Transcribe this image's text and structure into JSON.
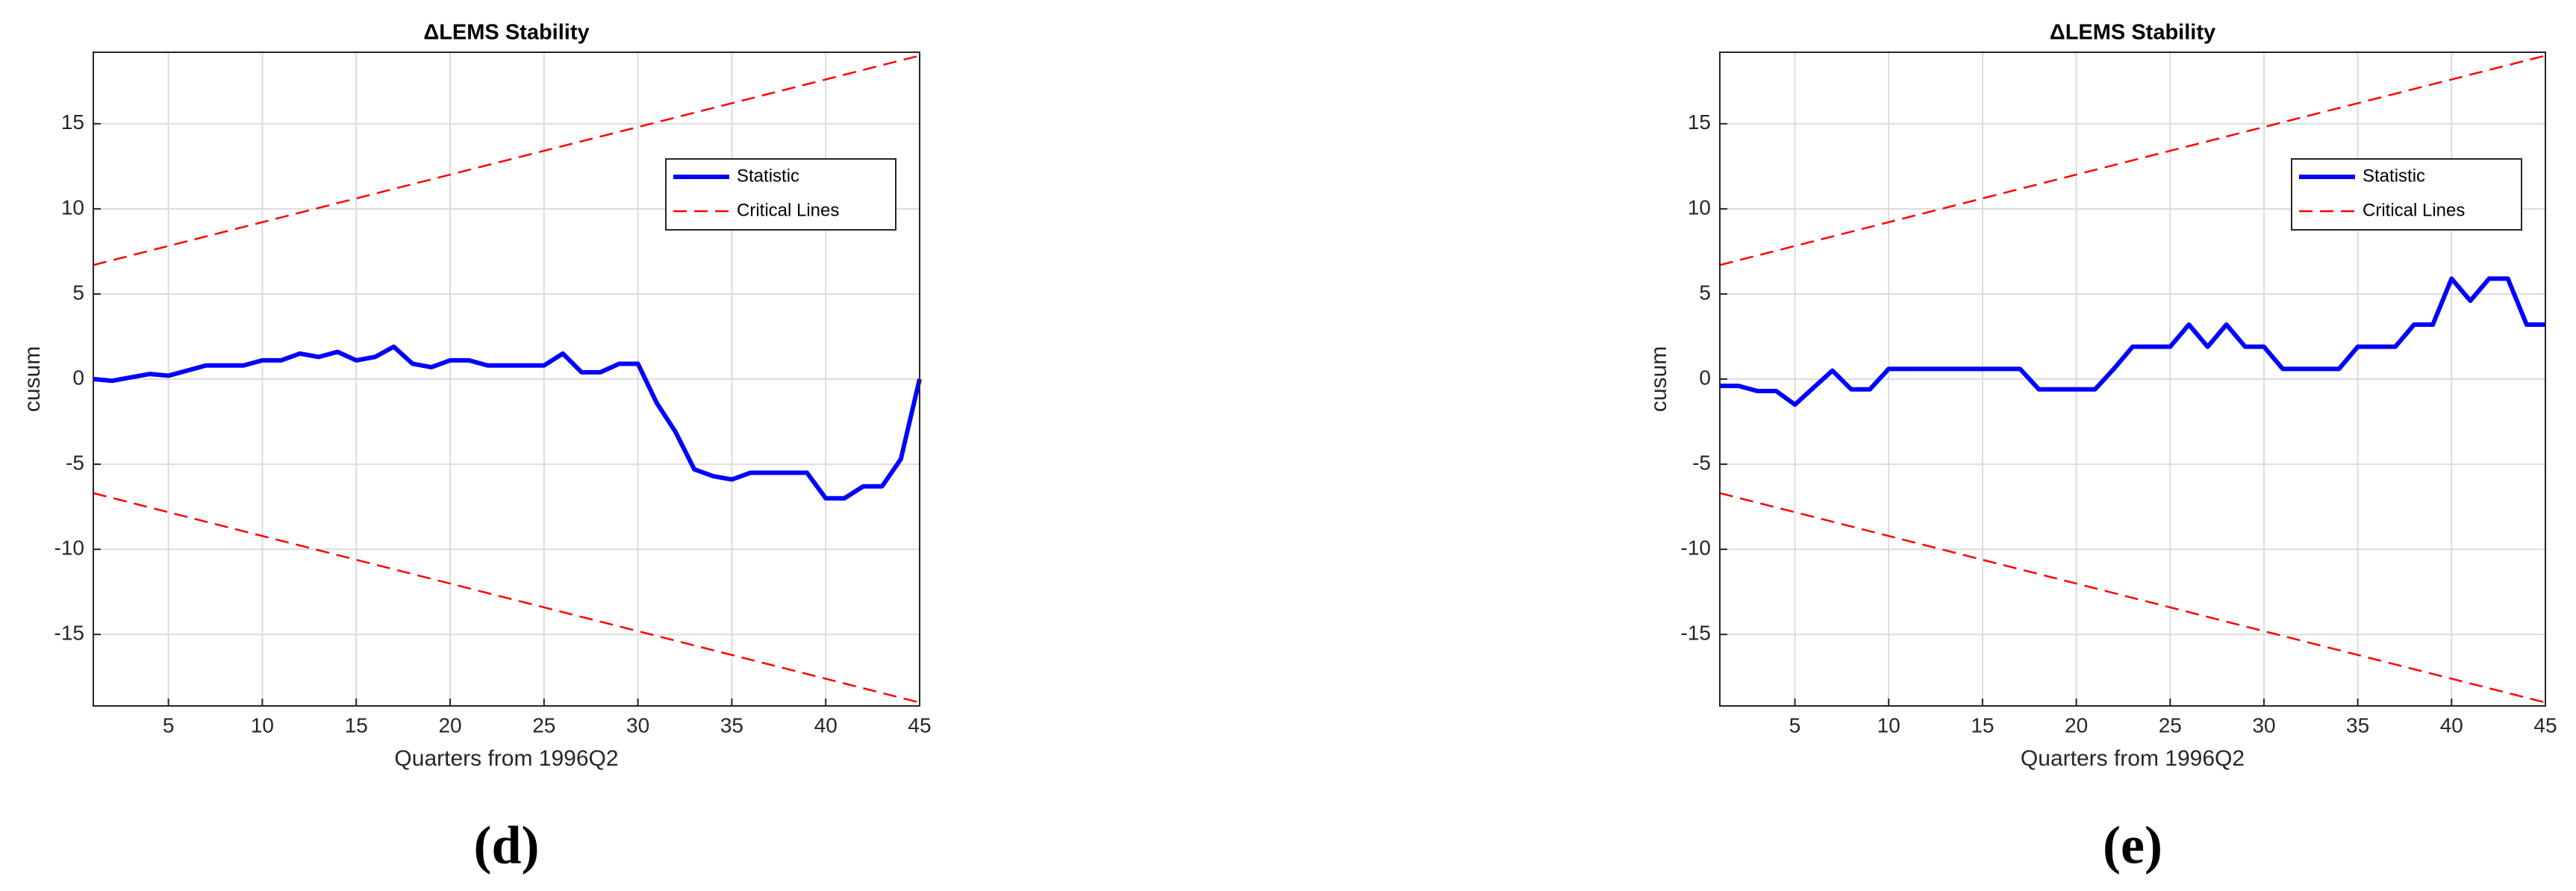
{
  "chart_data": [
    {
      "type": "line",
      "title": "ΔLEMS Stability",
      "xlabel": "Quarters from 1996Q2",
      "ylabel": "cusum",
      "caption": "(d)",
      "x": [
        1,
        2,
        3,
        4,
        5,
        6,
        7,
        8,
        9,
        10,
        11,
        12,
        13,
        14,
        15,
        16,
        17,
        18,
        19,
        20,
        21,
        22,
        23,
        24,
        25,
        26,
        27,
        28,
        29,
        30,
        31,
        32,
        33,
        34,
        35,
        36,
        37,
        38,
        39,
        40,
        41,
        42,
        43,
        44,
        45
      ],
      "series": [
        {
          "name": "Statistic",
          "color": "#0000ff",
          "values": [
            0,
            -0.1,
            0.1,
            0.3,
            0.2,
            0.5,
            0.8,
            0.8,
            0.8,
            1.1,
            1.1,
            1.5,
            1.3,
            1.6,
            1.1,
            1.3,
            1.9,
            0.9,
            0.7,
            1.1,
            1.1,
            0.8,
            0.8,
            0.8,
            0.8,
            1.5,
            0.4,
            0.4,
            0.9,
            0.9,
            -1.4,
            -3.1,
            -5.3,
            -5.7,
            -5.9,
            -5.5,
            -5.5,
            -5.5,
            -5.5,
            -7.0,
            -7.0,
            -6.3,
            -6.3,
            -4.7,
            0
          ]
        }
      ],
      "critical_lines": {
        "name": "Critical Lines",
        "color": "#ff0000",
        "x": [
          1,
          45
        ],
        "upper": [
          6.7,
          19.0
        ],
        "lower": [
          -6.7,
          -19.0
        ]
      },
      "xlim": [
        1,
        45
      ],
      "xticks": [
        5,
        10,
        15,
        20,
        25,
        30,
        35,
        40,
        45
      ],
      "ylim": [
        -19.2,
        19.2
      ],
      "yticks": [
        -15,
        -10,
        -5,
        0,
        5,
        10,
        15
      ],
      "grid": true,
      "legend": "northeast"
    },
    {
      "type": "line",
      "title": "ΔLEMS Stability",
      "xlabel": "Quarters from 1996Q2",
      "ylabel": "cusum",
      "caption": "(e)",
      "x": [
        1,
        2,
        3,
        4,
        5,
        6,
        7,
        8,
        9,
        10,
        11,
        12,
        13,
        14,
        15,
        16,
        17,
        18,
        19,
        20,
        21,
        22,
        23,
        24,
        25,
        26,
        27,
        28,
        29,
        30,
        31,
        32,
        33,
        34,
        35,
        36,
        37,
        38,
        39,
        40,
        41,
        42,
        43,
        44,
        45
      ],
      "series": [
        {
          "name": "Statistic",
          "color": "#0000ff",
          "values": [
            -0.4,
            -0.4,
            -0.7,
            -0.7,
            -1.5,
            -0.5,
            0.5,
            -0.6,
            -0.6,
            0.6,
            0.6,
            0.6,
            0.6,
            0.6,
            0.6,
            0.6,
            0.6,
            -0.6,
            -0.6,
            -0.6,
            -0.6,
            0.6,
            1.9,
            1.9,
            1.9,
            3.2,
            1.9,
            3.2,
            1.9,
            1.9,
            0.6,
            0.6,
            0.6,
            0.6,
            1.9,
            1.9,
            1.9,
            3.2,
            3.2,
            5.9,
            4.6,
            5.9,
            5.9,
            3.2,
            3.2
          ]
        }
      ],
      "critical_lines": {
        "name": "Critical Lines",
        "color": "#ff0000",
        "x": [
          1,
          45
        ],
        "upper": [
          6.7,
          19.0
        ],
        "lower": [
          -6.7,
          -19.0
        ]
      },
      "xlim": [
        1,
        45
      ],
      "xticks": [
        5,
        10,
        15,
        20,
        25,
        30,
        35,
        40,
        45
      ],
      "ylim": [
        -19.2,
        19.2
      ],
      "yticks": [
        -15,
        -10,
        -5,
        0,
        5,
        10,
        15
      ],
      "grid": true,
      "legend": "northeast"
    }
  ]
}
